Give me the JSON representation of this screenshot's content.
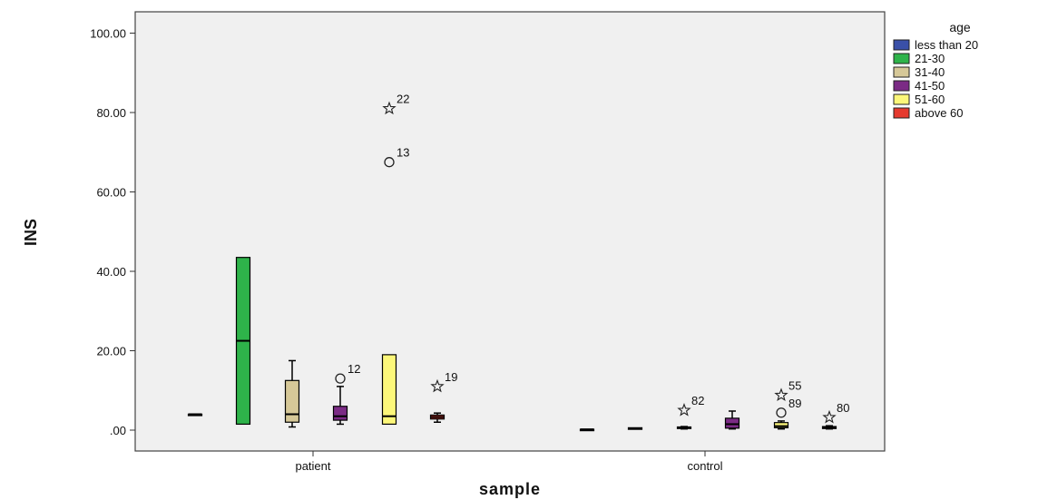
{
  "chart_data": {
    "type": "boxplot",
    "xlabel": "sample",
    "ylabel": "INS",
    "ylim": [
      -5.5,
      106
    ],
    "yticks": [
      0,
      20,
      40,
      60,
      80,
      100
    ],
    "ytick_labels": [
      ".00",
      "20.00",
      "40.00",
      "60.00",
      "80.00",
      "100.00"
    ],
    "categories": [
      "patient",
      "control"
    ],
    "legend": {
      "title": "age",
      "position": "top-right",
      "entries": [
        {
          "label": "less than 20",
          "color": "#3a50a8"
        },
        {
          "label": "21-30",
          "color": "#2eb34a"
        },
        {
          "label": "31-40",
          "color": "#d6c898"
        },
        {
          "label": "41-50",
          "color": "#7b2b85"
        },
        {
          "label": "51-60",
          "color": "#fcf77a"
        },
        {
          "label": "above 60",
          "color": "#e53a2f"
        }
      ]
    },
    "series": [
      {
        "category": "patient",
        "group": "less than 20",
        "min": 4.0,
        "q1": 4.0,
        "median": 4.0,
        "q3": 4.0,
        "max": 4.0,
        "outliers": []
      },
      {
        "category": "patient",
        "group": "21-30",
        "min": 1.5,
        "q1": 1.5,
        "median": 22.5,
        "q3": 43.5,
        "max": 43.5,
        "outliers": []
      },
      {
        "category": "patient",
        "group": "31-40",
        "min": 0.8,
        "q1": 2.0,
        "median": 4.0,
        "q3": 12.5,
        "max": 17.5,
        "outliers": []
      },
      {
        "category": "patient",
        "group": "41-50",
        "min": 1.5,
        "q1": 2.5,
        "median": 3.5,
        "q3": 6.0,
        "max": 11.0,
        "outliers": [
          {
            "value": 13.0,
            "label": "12",
            "symbol": "circle"
          }
        ]
      },
      {
        "category": "patient",
        "group": "51-60",
        "min": 1.5,
        "q1": 1.5,
        "median": 3.5,
        "q3": 19.0,
        "max": 19.0,
        "outliers": [
          {
            "value": 81.0,
            "label": "22",
            "symbol": "star"
          },
          {
            "value": 67.5,
            "label": "13",
            "symbol": "circle"
          }
        ]
      },
      {
        "category": "patient",
        "group": "above 60",
        "min": 2.0,
        "q1": 2.8,
        "median": 3.3,
        "q3": 3.8,
        "max": 4.3,
        "outliers": [
          {
            "value": 11.0,
            "label": "19",
            "symbol": "star"
          }
        ]
      },
      {
        "category": "control",
        "group": "less than 20",
        "min": 0.2,
        "q1": 0.2,
        "median": 0.2,
        "q3": 0.2,
        "max": 0.2,
        "outliers": []
      },
      {
        "category": "control",
        "group": "21-30",
        "min": 0.2,
        "q1": 0.2,
        "median": 0.4,
        "q3": 0.6,
        "max": 0.6,
        "outliers": []
      },
      {
        "category": "control",
        "group": "31-40",
        "min": 0.3,
        "q1": 0.4,
        "median": 0.6,
        "q3": 0.8,
        "max": 0.9,
        "outliers": [
          {
            "value": 5.0,
            "label": "82",
            "symbol": "star"
          }
        ]
      },
      {
        "category": "control",
        "group": "41-50",
        "min": 0.3,
        "q1": 0.5,
        "median": 1.5,
        "q3": 3.0,
        "max": 4.8,
        "outliers": []
      },
      {
        "category": "control",
        "group": "51-60",
        "min": 0.3,
        "q1": 0.6,
        "median": 1.0,
        "q3": 1.9,
        "max": 2.3,
        "outliers": [
          {
            "value": 8.8,
            "label": "55",
            "symbol": "star"
          },
          {
            "value": 4.4,
            "label": "89",
            "symbol": "circle"
          }
        ]
      },
      {
        "category": "control",
        "group": "above 60",
        "min": 0.3,
        "q1": 0.4,
        "median": 0.7,
        "q3": 0.9,
        "max": 1.1,
        "outliers": [
          {
            "value": 3.2,
            "label": "80",
            "symbol": "star"
          }
        ]
      }
    ]
  }
}
